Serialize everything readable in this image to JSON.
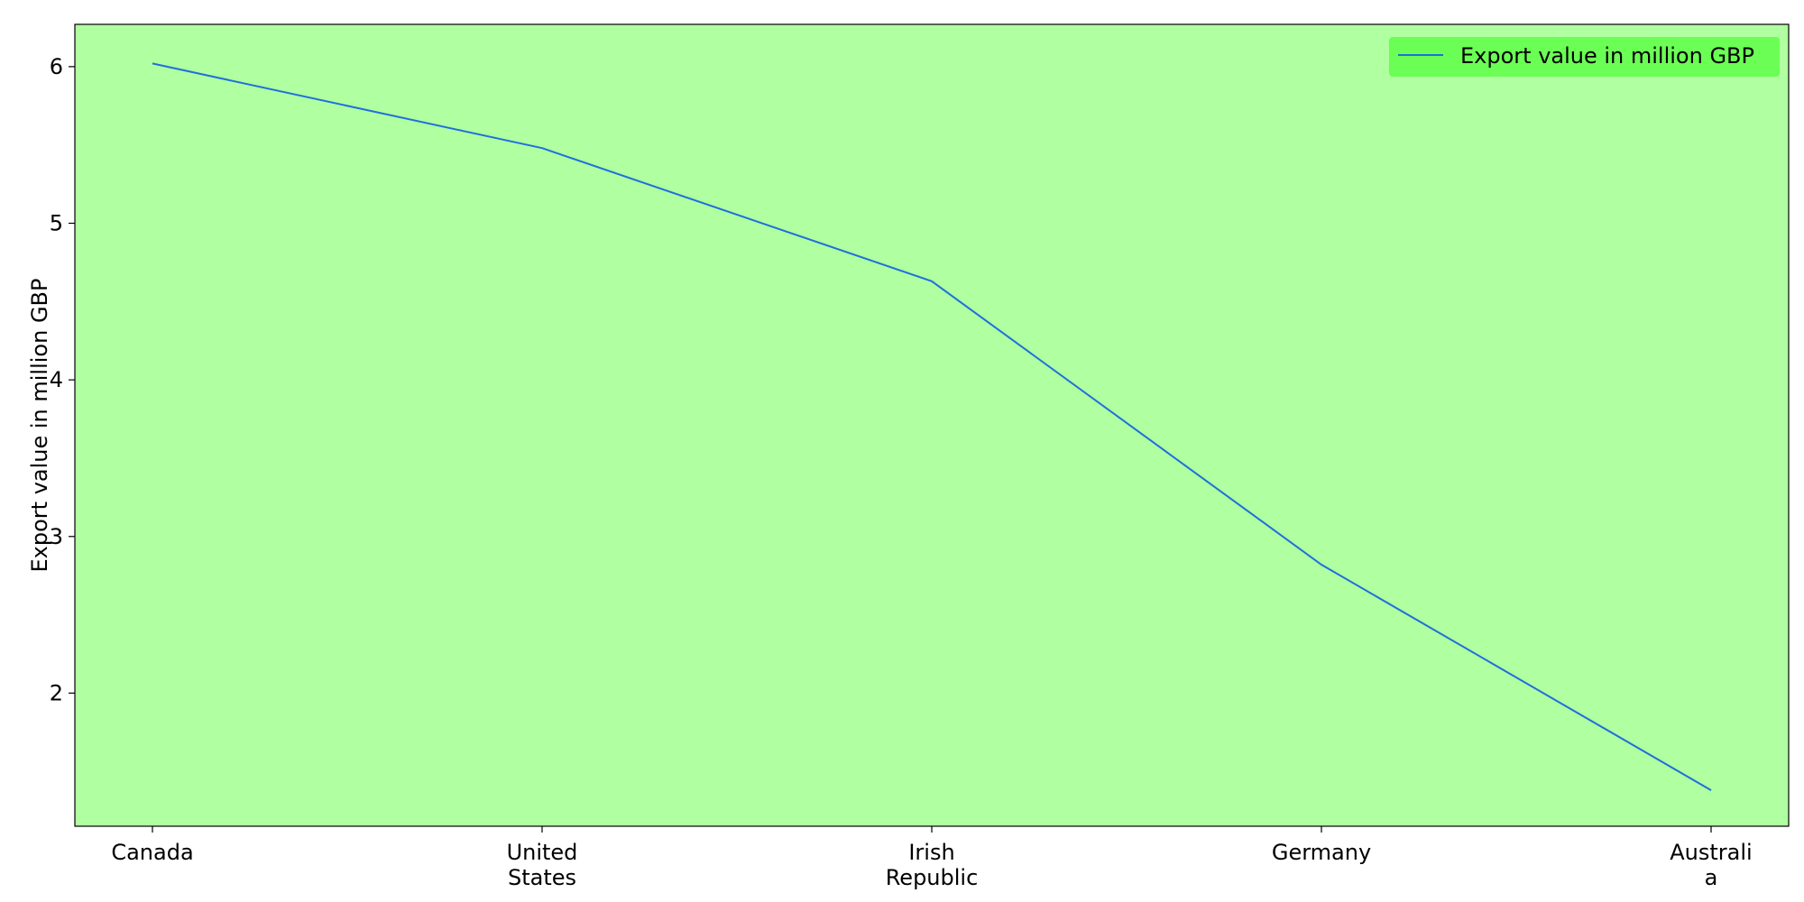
{
  "chart_data": {
    "type": "line",
    "categories": [
      "Canada",
      "United States",
      "Irish Republic",
      "Germany",
      "Australia"
    ],
    "category_label_lines": [
      [
        "Canada"
      ],
      [
        "United",
        "States"
      ],
      [
        "Irish",
        "Republic"
      ],
      [
        "Germany"
      ],
      [
        "Australi",
        "a"
      ]
    ],
    "series": [
      {
        "name": "Export value in million GBP",
        "values": [
          6.02,
          5.48,
          4.63,
          2.82,
          1.38
        ]
      }
    ],
    "ylabel": "Export value in million GBP",
    "xlabel": "",
    "ylim": [
      1.15,
      6.27
    ],
    "yticks": [
      2,
      3,
      4,
      5,
      6
    ],
    "grid": false,
    "legend_position": "top-right",
    "colors": {
      "plot_background": "#b0ffa0",
      "legend_background": "#6bff55",
      "line": "#1f6fdc",
      "axis": "#000000"
    }
  }
}
